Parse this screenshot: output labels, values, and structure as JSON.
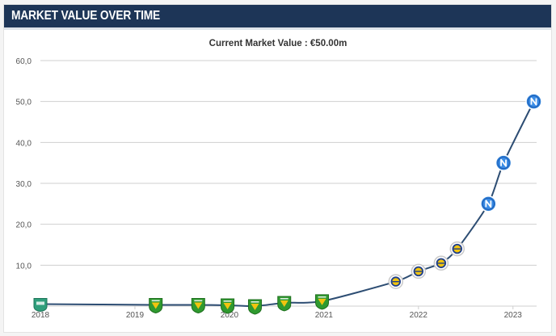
{
  "header": {
    "title": "MARKET VALUE OVER TIME"
  },
  "chart_data": {
    "type": "line",
    "subtitle": "Current Market Value : €50.00m",
    "title": "",
    "xlabel": "",
    "ylabel": "",
    "xlim": [
      2018.0,
      2023.25
    ],
    "ylim": [
      0,
      60
    ],
    "yticks": [
      "10,0",
      "20,0",
      "30,0",
      "40,0",
      "50,0",
      "60,0"
    ],
    "ytick_values": [
      10,
      20,
      30,
      40,
      50,
      60
    ],
    "xticks": [
      "2018",
      "2019",
      "2020",
      "2021",
      "2022",
      "2023"
    ],
    "xtick_values": [
      2018,
      2019,
      2020,
      2021,
      2022,
      2023
    ],
    "grid": true,
    "line_color": "#2d4d73",
    "club_colors": {
      "club_a": "#2f9f7c",
      "club_b": "#2f9a2f",
      "club_c": "#f1c40f",
      "club_d": "#1d5fb8"
    },
    "series": [
      {
        "points": [
          {
            "x": 2018.0,
            "y": 0.5,
            "club": "club_a"
          },
          {
            "x": 2019.22,
            "y": 0.3,
            "club": "club_b"
          },
          {
            "x": 2019.67,
            "y": 0.3,
            "club": "club_b"
          },
          {
            "x": 2019.98,
            "y": 0.2,
            "club": "club_b"
          },
          {
            "x": 2020.27,
            "y": 0.0,
            "club": "club_b"
          },
          {
            "x": 2020.58,
            "y": 0.8,
            "club": "club_b"
          },
          {
            "x": 2020.98,
            "y": 1.2,
            "club": "club_b"
          },
          {
            "x": 2021.76,
            "y": 6.0,
            "club": "club_c"
          },
          {
            "x": 2022.0,
            "y": 8.5,
            "club": "club_c"
          },
          {
            "x": 2022.24,
            "y": 10.5,
            "club": "club_c"
          },
          {
            "x": 2022.41,
            "y": 14.0,
            "club": "club_c"
          },
          {
            "x": 2022.74,
            "y": 25.0,
            "club": "club_d"
          },
          {
            "x": 2022.9,
            "y": 35.0,
            "club": "club_d"
          },
          {
            "x": 2023.22,
            "y": 50.0,
            "club": "club_d"
          }
        ]
      }
    ]
  }
}
